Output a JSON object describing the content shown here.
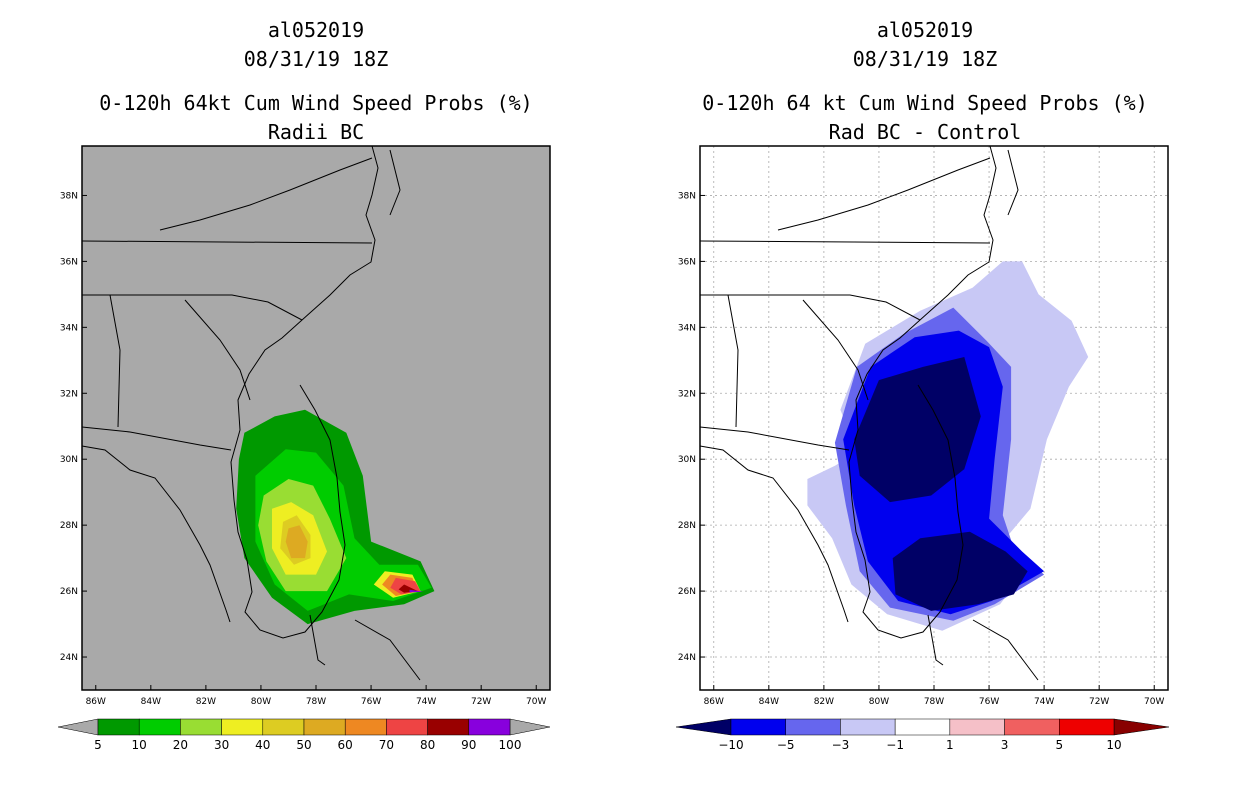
{
  "chart_data": [
    {
      "type": "contour-map",
      "storm_id": "al052019",
      "datetime": "08/31/19 18Z",
      "title": "0-120h 64kt Cum Wind Speed Probs (%)",
      "subtitle": "Radii BC",
      "background": "#a9a9a9",
      "x_ticks": [
        "86W",
        "84W",
        "82W",
        "80W",
        "78W",
        "76W",
        "74W",
        "72W",
        "70W"
      ],
      "y_ticks": [
        "38N",
        "36N",
        "34N",
        "32N",
        "30N",
        "28N",
        "26N",
        "24N"
      ],
      "xlim": [
        -86.5,
        -69.5
      ],
      "ylim": [
        23.0,
        39.5
      ],
      "colorbar": {
        "labels": [
          "5",
          "10",
          "20",
          "30",
          "40",
          "50",
          "60",
          "70",
          "80",
          "90",
          "100"
        ],
        "colors": [
          "#009900",
          "#00cc00",
          "#99dd33",
          "#eeee22",
          "#ddcc22",
          "#ddaa22",
          "#ee8822",
          "#ee4444",
          "#990000",
          "#8800dd"
        ]
      },
      "contours": [
        {
          "level": 5,
          "color": "#009900",
          "points": [
            [
              -80.8,
              30.0
            ],
            [
              -80.6,
              30.8
            ],
            [
              -79.5,
              31.3
            ],
            [
              -78.4,
              31.5
            ],
            [
              -76.9,
              30.8
            ],
            [
              -76.3,
              29.5
            ],
            [
              -76.0,
              27.5
            ],
            [
              -74.2,
              26.9
            ],
            [
              -73.7,
              26.0
            ],
            [
              -74.8,
              25.6
            ],
            [
              -76.6,
              25.4
            ],
            [
              -78.3,
              25.0
            ],
            [
              -79.6,
              25.8
            ],
            [
              -80.6,
              27.0
            ],
            [
              -80.9,
              28.5
            ]
          ]
        },
        {
          "level": 10,
          "color": "#00cc00",
          "points": [
            [
              -80.2,
              29.5
            ],
            [
              -79.1,
              30.3
            ],
            [
              -78.0,
              30.2
            ],
            [
              -77.0,
              29.2
            ],
            [
              -76.6,
              27.6
            ],
            [
              -75.7,
              26.8
            ],
            [
              -74.3,
              26.8
            ],
            [
              -73.8,
              26.1
            ],
            [
              -75.2,
              25.7
            ],
            [
              -76.8,
              25.9
            ],
            [
              -78.3,
              25.4
            ],
            [
              -79.5,
              26.2
            ],
            [
              -80.2,
              27.5
            ]
          ]
        },
        {
          "level": 20,
          "color": "#99dd33",
          "points": [
            [
              -79.9,
              28.9
            ],
            [
              -79.0,
              29.4
            ],
            [
              -78.1,
              29.2
            ],
            [
              -77.5,
              28.2
            ],
            [
              -76.9,
              27.0
            ],
            [
              -77.6,
              26.0
            ],
            [
              -79.1,
              26.0
            ],
            [
              -79.8,
              26.9
            ],
            [
              -80.1,
              28.0
            ]
          ]
        },
        {
          "level": 30,
          "color": "#eeee22",
          "points": [
            [
              -79.6,
              28.5
            ],
            [
              -78.9,
              28.7
            ],
            [
              -78.1,
              28.3
            ],
            [
              -77.6,
              27.2
            ],
            [
              -78.0,
              26.5
            ],
            [
              -79.1,
              26.5
            ],
            [
              -79.6,
              27.3
            ]
          ]
        },
        {
          "level": 40,
          "color": "#ddcc22",
          "points": [
            [
              -79.2,
              28.1
            ],
            [
              -78.7,
              28.3
            ],
            [
              -78.2,
              27.7
            ],
            [
              -78.2,
              27.0
            ],
            [
              -78.8,
              26.8
            ],
            [
              -79.3,
              27.3
            ]
          ]
        },
        {
          "level": 50,
          "color": "#ddaa22",
          "points": [
            [
              -79.0,
              27.9
            ],
            [
              -78.6,
              28.0
            ],
            [
              -78.3,
              27.5
            ],
            [
              -78.4,
              27.0
            ],
            [
              -78.9,
              27.0
            ],
            [
              -79.1,
              27.5
            ]
          ]
        },
        {
          "level": 30,
          "color": "#eeee22",
          "points": [
            [
              -75.5,
              26.6
            ],
            [
              -74.5,
              26.5
            ],
            [
              -74.2,
              26.0
            ],
            [
              -75.2,
              25.8
            ],
            [
              -75.9,
              26.2
            ]
          ]
        },
        {
          "level": 60,
          "color": "#ee8822",
          "points": [
            [
              -75.3,
              26.5
            ],
            [
              -74.5,
              26.4
            ],
            [
              -74.3,
              26.0
            ],
            [
              -75.1,
              25.85
            ],
            [
              -75.6,
              26.2
            ]
          ]
        },
        {
          "level": 70,
          "color": "#ee4444",
          "points": [
            [
              -75.1,
              26.4
            ],
            [
              -74.4,
              26.3
            ],
            [
              -74.2,
              26.0
            ],
            [
              -74.9,
              25.9
            ],
            [
              -75.3,
              26.1
            ]
          ]
        },
        {
          "level": 80,
          "color": "#990000",
          "points": [
            [
              -74.8,
              26.2
            ],
            [
              -74.3,
              26.0
            ],
            [
              -74.8,
              25.95
            ],
            [
              -75.0,
              26.05
            ]
          ]
        },
        {
          "level": 90,
          "color": "#8800dd",
          "points": [
            [
              -74.6,
              26.04
            ],
            [
              -74.1,
              25.98
            ],
            [
              -74.6,
              25.96
            ]
          ]
        }
      ]
    },
    {
      "type": "contour-map",
      "storm_id": "al052019",
      "datetime": "08/31/19 18Z",
      "title": "0-120h 64 kt Cum Wind Speed Probs (%)",
      "subtitle": "Rad BC - Control",
      "background": "#ffffff",
      "x_ticks": [
        "86W",
        "84W",
        "82W",
        "80W",
        "78W",
        "76W",
        "74W",
        "72W",
        "70W"
      ],
      "y_ticks": [
        "38N",
        "36N",
        "34N",
        "32N",
        "30N",
        "28N",
        "26N",
        "24N"
      ],
      "xlim": [
        -86.5,
        -69.5
      ],
      "ylim": [
        23.0,
        39.5
      ],
      "colorbar": {
        "labels": [
          "-10",
          "-5",
          "-3",
          "-1",
          "1",
          "3",
          "5",
          "10"
        ],
        "colors": [
          "#000066",
          "#0000ee",
          "#6666ee",
          "#c8c8f5",
          "#ffffff",
          "#f5c0c8",
          "#f06060",
          "#ee0000",
          "#880000"
        ]
      },
      "contours": [
        {
          "level": -1,
          "color": "#c8c8f5",
          "points": [
            [
              -82.6,
              29.4
            ],
            [
              -81.6,
              29.8
            ],
            [
              -80.8,
              30.2
            ],
            [
              -81.4,
              31.5
            ],
            [
              -80.5,
              33.5
            ],
            [
              -78.5,
              34.5
            ],
            [
              -76.6,
              35.2
            ],
            [
              -75.5,
              36.0
            ],
            [
              -74.8,
              36.0
            ],
            [
              -74.2,
              35.0
            ],
            [
              -73.0,
              34.2
            ],
            [
              -72.4,
              33.1
            ],
            [
              -73.1,
              32.2
            ],
            [
              -73.9,
              30.6
            ],
            [
              -74.5,
              28.5
            ],
            [
              -75.4,
              27.6
            ],
            [
              -74.6,
              26.7
            ],
            [
              -75.6,
              25.6
            ],
            [
              -77.7,
              24.8
            ],
            [
              -79.7,
              25.3
            ],
            [
              -81.0,
              26.2
            ],
            [
              -81.7,
              27.6
            ],
            [
              -82.6,
              28.6
            ]
          ]
        },
        {
          "level": -3,
          "color": "#6666ee",
          "points": [
            [
              -81.6,
              30.5
            ],
            [
              -80.8,
              32.8
            ],
            [
              -79.1,
              33.8
            ],
            [
              -77.3,
              34.6
            ],
            [
              -76.1,
              33.6
            ],
            [
              -75.2,
              32.8
            ],
            [
              -75.2,
              30.6
            ],
            [
              -75.5,
              28.3
            ],
            [
              -75.1,
              27.3
            ],
            [
              -74.0,
              26.5
            ],
            [
              -75.8,
              25.6
            ],
            [
              -77.3,
              25.1
            ],
            [
              -79.6,
              25.5
            ],
            [
              -80.7,
              26.6
            ],
            [
              -81.2,
              28.6
            ]
          ]
        },
        {
          "level": -5,
          "color": "#0000ee",
          "points": [
            [
              -81.3,
              30.6
            ],
            [
              -80.3,
              32.8
            ],
            [
              -78.7,
              33.7
            ],
            [
              -77.1,
              33.9
            ],
            [
              -76.0,
              33.4
            ],
            [
              -75.5,
              32.2
            ],
            [
              -75.8,
              30.0
            ],
            [
              -76.0,
              28.2
            ],
            [
              -74.8,
              27.2
            ],
            [
              -74.0,
              26.6
            ],
            [
              -75.9,
              25.7
            ],
            [
              -77.4,
              25.3
            ],
            [
              -79.3,
              25.7
            ],
            [
              -80.4,
              26.9
            ],
            [
              -80.9,
              28.6
            ]
          ]
        },
        {
          "level": -10,
          "color": "#000066",
          "points": [
            [
              -80.9,
              30.6
            ],
            [
              -80.0,
              32.4
            ],
            [
              -78.4,
              32.8
            ],
            [
              -76.9,
              33.1
            ],
            [
              -76.3,
              31.3
            ],
            [
              -76.9,
              29.7
            ],
            [
              -78.1,
              28.9
            ],
            [
              -79.6,
              28.7
            ],
            [
              -80.7,
              29.5
            ]
          ]
        },
        {
          "level": -10,
          "color": "#000066",
          "points": [
            [
              -79.5,
              27.0
            ],
            [
              -78.5,
              27.6
            ],
            [
              -76.7,
              27.8
            ],
            [
              -75.4,
              27.2
            ],
            [
              -74.6,
              26.6
            ],
            [
              -75.1,
              25.9
            ],
            [
              -76.4,
              25.6
            ],
            [
              -78.1,
              25.4
            ],
            [
              -79.4,
              25.9
            ]
          ]
        }
      ]
    }
  ]
}
